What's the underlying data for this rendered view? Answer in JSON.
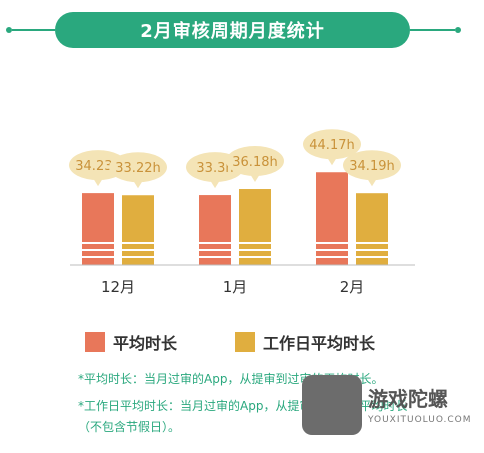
{
  "title": "2月审核周期月度统计",
  "colors": {
    "accent": "#2aa87e",
    "series_avg": "#e8775a",
    "series_workday": "#e0ae3f",
    "bubble": "#f4e4b6",
    "bubble_text": "#c9923a",
    "stripe": "#ffffff"
  },
  "chart_data": {
    "type": "bar",
    "categories": [
      "12月",
      "1月",
      "2月"
    ],
    "series": [
      {
        "name": "平均时长",
        "values": [
          34.23,
          33.3,
          44.17
        ],
        "labels": [
          "34.23h",
          "33.3h",
          "44.17h"
        ]
      },
      {
        "name": "工作日平均时长",
        "values": [
          33.22,
          36.18,
          34.19
        ],
        "labels": [
          "33.22h",
          "36.18h",
          "34.19h"
        ]
      }
    ],
    "unit": "h",
    "ylim": [
      0,
      48
    ],
    "grid": false,
    "legend_position": "bottom"
  },
  "legend": {
    "avg_label": "平均时长",
    "workday_label": "工作日平均时长"
  },
  "notes": {
    "line1": "*平均时长：当月过审的App，从提审到过审的平均时长。",
    "line2": "*工作日平均时长：当月过审的App，从提审到过审的平均时长",
    "line3": "（不包含节假日）。"
  },
  "watermark": {
    "name": "游戏陀螺",
    "url": "YOUXITUOLUO.COM"
  }
}
